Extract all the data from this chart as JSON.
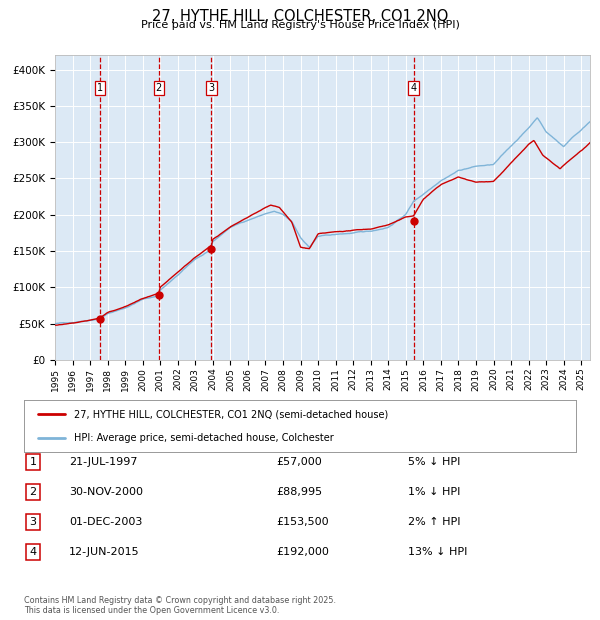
{
  "title": "27, HYTHE HILL, COLCHESTER, CO1 2NQ",
  "subtitle": "Price paid vs. HM Land Registry's House Price Index (HPI)",
  "background_color": "#dce9f5",
  "red_line_color": "#cc0000",
  "blue_line_color": "#7fb4d8",
  "grid_color": "#ffffff",
  "dashed_line_color": "#cc0000",
  "ylim": [
    0,
    420000
  ],
  "yticks": [
    0,
    50000,
    100000,
    150000,
    200000,
    250000,
    300000,
    350000,
    400000
  ],
  "ytick_labels": [
    "£0",
    "£50K",
    "£100K",
    "£150K",
    "£200K",
    "£250K",
    "£300K",
    "£350K",
    "£400K"
  ],
  "xlim_start": 1995.0,
  "xlim_end": 2025.5,
  "transactions": [
    {
      "num": 1,
      "date": "21-JUL-1997",
      "year": 1997.55,
      "price": 57000,
      "pct": "5%",
      "dir": "↓"
    },
    {
      "num": 2,
      "date": "30-NOV-2000",
      "year": 2000.92,
      "price": 88995,
      "pct": "1%",
      "dir": "↓"
    },
    {
      "num": 3,
      "date": "01-DEC-2003",
      "year": 2003.92,
      "price": 153500,
      "pct": "2%",
      "dir": "↑"
    },
    {
      "num": 4,
      "date": "12-JUN-2015",
      "year": 2015.44,
      "price": 192000,
      "pct": "13%",
      "dir": "↓"
    }
  ],
  "legend_entries": [
    "27, HYTHE HILL, COLCHESTER, CO1 2NQ (semi-detached house)",
    "HPI: Average price, semi-detached house, Colchester"
  ],
  "footer": "Contains HM Land Registry data © Crown copyright and database right 2025.\nThis data is licensed under the Open Government Licence v3.0.",
  "xticks": [
    1995,
    1996,
    1997,
    1998,
    1999,
    2000,
    2001,
    2002,
    2003,
    2004,
    2005,
    2006,
    2007,
    2008,
    2009,
    2010,
    2011,
    2012,
    2013,
    2014,
    2015,
    2016,
    2017,
    2018,
    2019,
    2020,
    2021,
    2022,
    2023,
    2024,
    2025
  ],
  "hpi_anchors_x": [
    1995.0,
    1996.0,
    1997.0,
    1997.55,
    1998.0,
    1999.0,
    2000.0,
    2000.92,
    2001.0,
    2002.0,
    2003.0,
    2003.92,
    2004.0,
    2005.0,
    2006.0,
    2007.0,
    2007.5,
    2008.0,
    2008.5,
    2009.0,
    2009.5,
    2010.0,
    2011.0,
    2012.0,
    2013.0,
    2014.0,
    2015.0,
    2015.44,
    2016.0,
    2017.0,
    2018.0,
    2019.0,
    2020.0,
    2021.0,
    2022.0,
    2022.5,
    2023.0,
    2023.5,
    2024.0,
    2024.5,
    2025.0,
    2025.5
  ],
  "hpi_anchors_y": [
    50000,
    52000,
    56000,
    58000,
    65000,
    73000,
    85000,
    90000,
    98000,
    118000,
    140000,
    152000,
    163000,
    183000,
    193000,
    202000,
    205000,
    200000,
    190000,
    168000,
    155000,
    170000,
    172000,
    174000,
    176000,
    182000,
    200000,
    218000,
    228000,
    248000,
    262000,
    268000,
    270000,
    295000,
    320000,
    335000,
    315000,
    305000,
    295000,
    308000,
    318000,
    330000
  ],
  "red_anchors_x": [
    1995.0,
    1996.0,
    1997.0,
    1997.55,
    1998.0,
    1999.0,
    2000.0,
    2000.92,
    2001.0,
    2002.0,
    2003.0,
    2003.92,
    2004.0,
    2005.0,
    2006.0,
    2007.0,
    2007.3,
    2007.8,
    2008.5,
    2009.0,
    2009.5,
    2010.0,
    2011.0,
    2012.0,
    2013.0,
    2014.0,
    2015.0,
    2015.44,
    2016.0,
    2017.0,
    2018.0,
    2019.0,
    2020.0,
    2021.0,
    2022.0,
    2022.3,
    2022.8,
    2023.3,
    2023.8,
    2024.0,
    2024.5,
    2025.0,
    2025.5
  ],
  "red_anchors_y": [
    48000,
    50000,
    54000,
    57000,
    64000,
    72000,
    83000,
    88995,
    97000,
    117000,
    138000,
    153500,
    162000,
    180000,
    192000,
    205000,
    208000,
    205000,
    185000,
    150000,
    148000,
    168000,
    170000,
    172000,
    174000,
    180000,
    190000,
    192000,
    215000,
    235000,
    245000,
    238000,
    240000,
    265000,
    290000,
    295000,
    275000,
    265000,
    255000,
    260000,
    270000,
    280000,
    290000
  ]
}
